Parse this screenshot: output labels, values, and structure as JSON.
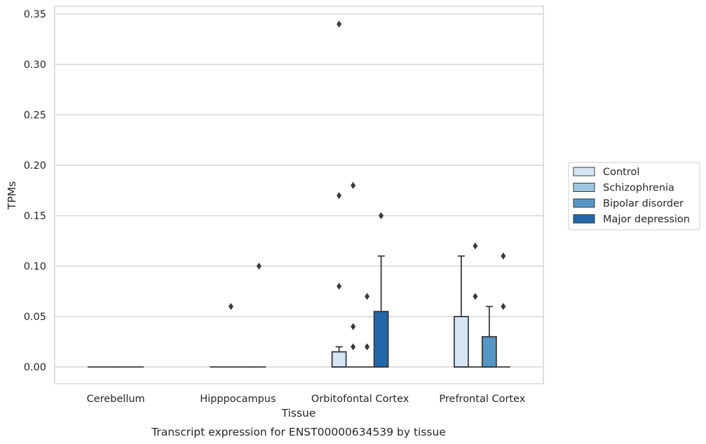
{
  "chart_data": {
    "type": "box",
    "title": "Transcript expression for ENST00000634539 by tissue",
    "xlabel": "Tissue",
    "ylabel": "TPMs",
    "ylim": [
      -0.017,
      0.357
    ],
    "yticks": [
      "0.00",
      "0.05",
      "0.10",
      "0.15",
      "0.20",
      "0.25",
      "0.30",
      "0.35"
    ],
    "ytick_values": [
      0,
      0.05,
      0.1,
      0.15,
      0.2,
      0.25,
      0.3,
      0.35
    ],
    "grid": "horizontal",
    "legend_placement": "right",
    "categories": [
      "Cerebellum",
      "Hipppocampus",
      "Orbitofontal Cortex",
      "Prefrontal Cortex"
    ],
    "series": [
      {
        "name": "Control",
        "color": "#d6e5f4",
        "boxes": [
          {
            "q1": 0,
            "median": 0,
            "q3": 0,
            "whislo": 0,
            "whishi": 0,
            "fliers": []
          },
          {
            "q1": 0,
            "median": 0,
            "q3": 0,
            "whislo": 0,
            "whishi": 0,
            "fliers": []
          },
          {
            "q1": 0,
            "median": 0,
            "q3": 0.015,
            "whislo": 0,
            "whishi": 0.02,
            "fliers": [
              0.08,
              0.17,
              0.34
            ]
          },
          {
            "q1": 0,
            "median": 0,
            "q3": 0.05,
            "whislo": 0,
            "whishi": 0.11,
            "fliers": []
          }
        ]
      },
      {
        "name": "Schizophrenia",
        "color": "#9ac7e0",
        "boxes": [
          {
            "q1": 0,
            "median": 0,
            "q3": 0,
            "whislo": 0,
            "whishi": 0,
            "fliers": []
          },
          {
            "q1": 0,
            "median": 0,
            "q3": 0,
            "whislo": 0,
            "whishi": 0,
            "fliers": [
              0.06
            ]
          },
          {
            "q1": 0,
            "median": 0,
            "q3": 0,
            "whislo": 0,
            "whishi": 0,
            "fliers": [
              0.02,
              0.04,
              0.18
            ]
          },
          {
            "q1": 0,
            "median": 0,
            "q3": 0,
            "whislo": 0,
            "whishi": 0,
            "fliers": [
              0.07,
              0.12
            ]
          }
        ]
      },
      {
        "name": "Bipolar disorder",
        "color": "#5596c6",
        "boxes": [
          {
            "q1": 0,
            "median": 0,
            "q3": 0,
            "whislo": 0,
            "whishi": 0,
            "fliers": []
          },
          {
            "q1": 0,
            "median": 0,
            "q3": 0,
            "whislo": 0,
            "whishi": 0,
            "fliers": []
          },
          {
            "q1": 0,
            "median": 0,
            "q3": 0,
            "whislo": 0,
            "whishi": 0,
            "fliers": [
              0.02,
              0.07
            ]
          },
          {
            "q1": 0,
            "median": 0,
            "q3": 0.03,
            "whislo": 0,
            "whishi": 0.06,
            "fliers": []
          }
        ]
      },
      {
        "name": "Major depression",
        "color": "#2267a8",
        "boxes": [
          {
            "q1": 0,
            "median": 0,
            "q3": 0,
            "whislo": 0,
            "whishi": 0,
            "fliers": []
          },
          {
            "q1": 0,
            "median": 0,
            "q3": 0,
            "whislo": 0,
            "whishi": 0,
            "fliers": [
              0.1
            ]
          },
          {
            "q1": 0,
            "median": 0,
            "q3": 0.055,
            "whislo": 0,
            "whishi": 0.11,
            "fliers": [
              0.15
            ]
          },
          {
            "q1": 0,
            "median": 0,
            "q3": 0,
            "whislo": 0,
            "whishi": 0,
            "fliers": [
              0.06,
              0.11
            ]
          }
        ]
      }
    ]
  }
}
